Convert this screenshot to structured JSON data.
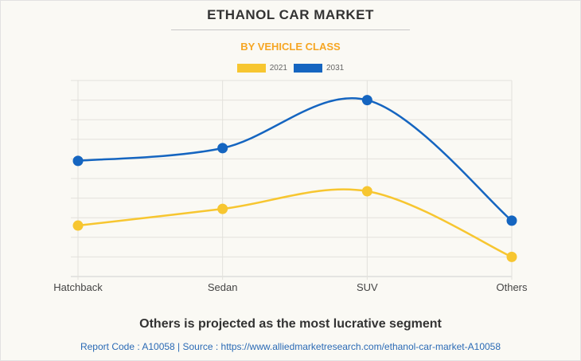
{
  "header": {
    "title": "ETHANOL CAR MARKET",
    "subtitle": "BY VEHICLE CLASS"
  },
  "colors": {
    "series_2021": "#f7c630",
    "series_2031": "#1565c0",
    "subtitle": "#f6a623",
    "grid": "#e3e1dc",
    "axis": "#cfcfcf",
    "tick_text": "#444444"
  },
  "chart_data": {
    "type": "line",
    "title": "ETHANOL CAR MARKET",
    "subtitle": "BY VEHICLE CLASS",
    "xlabel": "",
    "ylabel": "",
    "categories": [
      "Hatchback",
      "Sedan",
      "SUV",
      "Others"
    ],
    "series": [
      {
        "name": "2021",
        "values": [
          2.6,
          3.45,
          4.35,
          1.0
        ]
      },
      {
        "name": "2031",
        "values": [
          5.9,
          6.55,
          9.0,
          2.85
        ]
      }
    ],
    "ylim": [
      0,
      10
    ],
    "y_tick_count": 10,
    "y_tick_labels_visible": false,
    "grid": true,
    "smooth": true,
    "legend": "top-center"
  },
  "footer": {
    "caption": "Others is projected as the most lucrative segment",
    "source": "Report Code : A10058  |  Source : https://www.alliedmarketresearch.com/ethanol-car-market-A10058"
  }
}
